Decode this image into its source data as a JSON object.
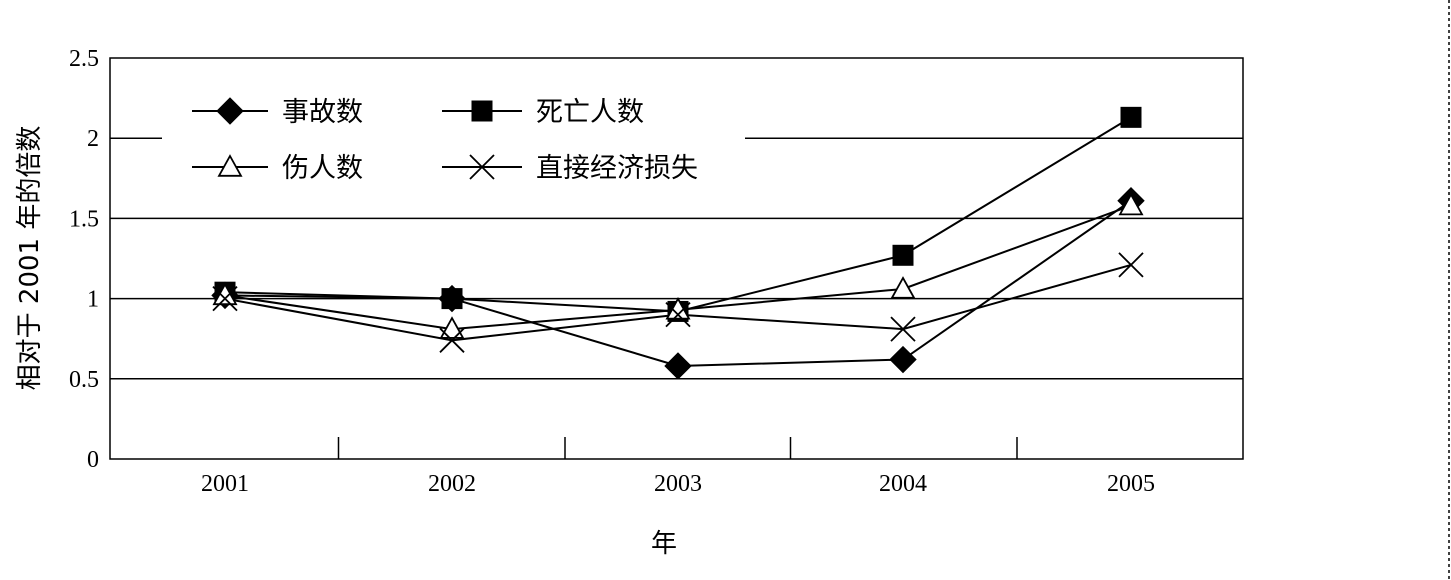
{
  "chart_data": {
    "type": "line",
    "categories": [
      "2001",
      "2002",
      "2003",
      "2004",
      "2005"
    ],
    "series": [
      {
        "name": "事故数",
        "marker": "diamond",
        "values": [
          1.02,
          1.0,
          0.58,
          0.62,
          1.61
        ]
      },
      {
        "name": "死亡人数",
        "marker": "square",
        "values": [
          1.04,
          1.0,
          0.92,
          1.27,
          2.13
        ]
      },
      {
        "name": "伤人数",
        "marker": "triangle",
        "values": [
          1.02,
          0.81,
          0.93,
          1.06,
          1.58
        ]
      },
      {
        "name": "直接经济损失",
        "marker": "x",
        "values": [
          1.0,
          0.74,
          0.9,
          0.81,
          1.21
        ]
      }
    ],
    "xlabel": "年",
    "ylabel": "相对于 2001 年的倍数",
    "ylim": [
      0,
      2.5
    ],
    "yticks": [
      "0",
      "0.5",
      "1",
      "1.5",
      "2",
      "2.5"
    ],
    "grid": true,
    "legend_position": "top-left"
  }
}
